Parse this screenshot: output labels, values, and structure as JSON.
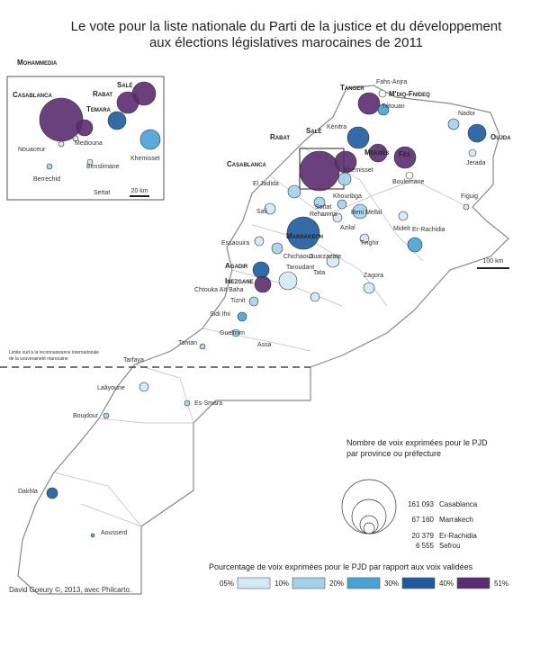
{
  "title": [
    "Le vote pour la liste nationale du Parti de la justice et du développement",
    "aux élections législatives marocaines de 2011"
  ],
  "major_cities": [
    "Tanger",
    "M'diq-Fnideq",
    "Oujda",
    "Salé",
    "Rabat",
    "Meknès",
    "Fès",
    "Casablanca",
    "Marrakech",
    "Agadir",
    "Inezgane"
  ],
  "other_places": [
    "Fahs-Anjra",
    "Tétouan",
    "Nador",
    "Kénitra",
    "Khémisset",
    "Jerada",
    "El Jadida",
    "Boulemane",
    "Figuig",
    "Safi",
    "Rehamna",
    "Settat",
    "Khouribga",
    "Beni Mellal",
    "Midelt",
    "Azilal",
    "Er-Rachidia",
    "Essaouira",
    "Chichaoua",
    "Ouarzazate",
    "Tinghir",
    "Taroudant",
    "Zagora",
    "Chtouka Aït Baha",
    "Tata",
    "Tiznit",
    "Sidi Ifni",
    "Guelmim",
    "Assa",
    "Tantan",
    "Tarfaya",
    "Laâyoune",
    "Es-Smara",
    "Boujdour",
    "Dakhla",
    "Aousserd"
  ],
  "scale": "100 km",
  "boundary_note": [
    "Limite sud à la reconnaissance internationale",
    "de la souveraineté marocaine"
  ],
  "inset": {
    "major_cities": [
      "Mohammedia",
      "Casablanca",
      "Salé",
      "Rabat",
      "Temara"
    ],
    "other_places": [
      "Nouaceur",
      "Mediouna",
      "Khemisset",
      "Benslimane",
      "Berrechid",
      "Settat"
    ],
    "scale": "20 km"
  },
  "legend_size": {
    "title": [
      "Nombre de voix exprimées pour le PJD",
      "par province ou préfecture"
    ],
    "entries": [
      {
        "value": "161 093",
        "label": "Casablanca"
      },
      {
        "value": "67 160",
        "label": "Marrakech"
      },
      {
        "value": "20 379",
        "label": "Er-Rachidia"
      },
      {
        "value": "6 555",
        "label": "Sefrou"
      }
    ]
  },
  "legend_color": {
    "title": "Pourcentage de voix exprimées pour le PJD par rapport aux voix validées",
    "classes": [
      "05%",
      "10%",
      "20%",
      "30%",
      "40%",
      "51%"
    ],
    "colors": [
      "#ffffff",
      "#d3e9f6",
      "#a3d0ec",
      "#48a2d6",
      "#1f5a9e",
      "#5b2c6f"
    ]
  },
  "credit": "David Goeury ©, 2013, avec Philcarto."
}
